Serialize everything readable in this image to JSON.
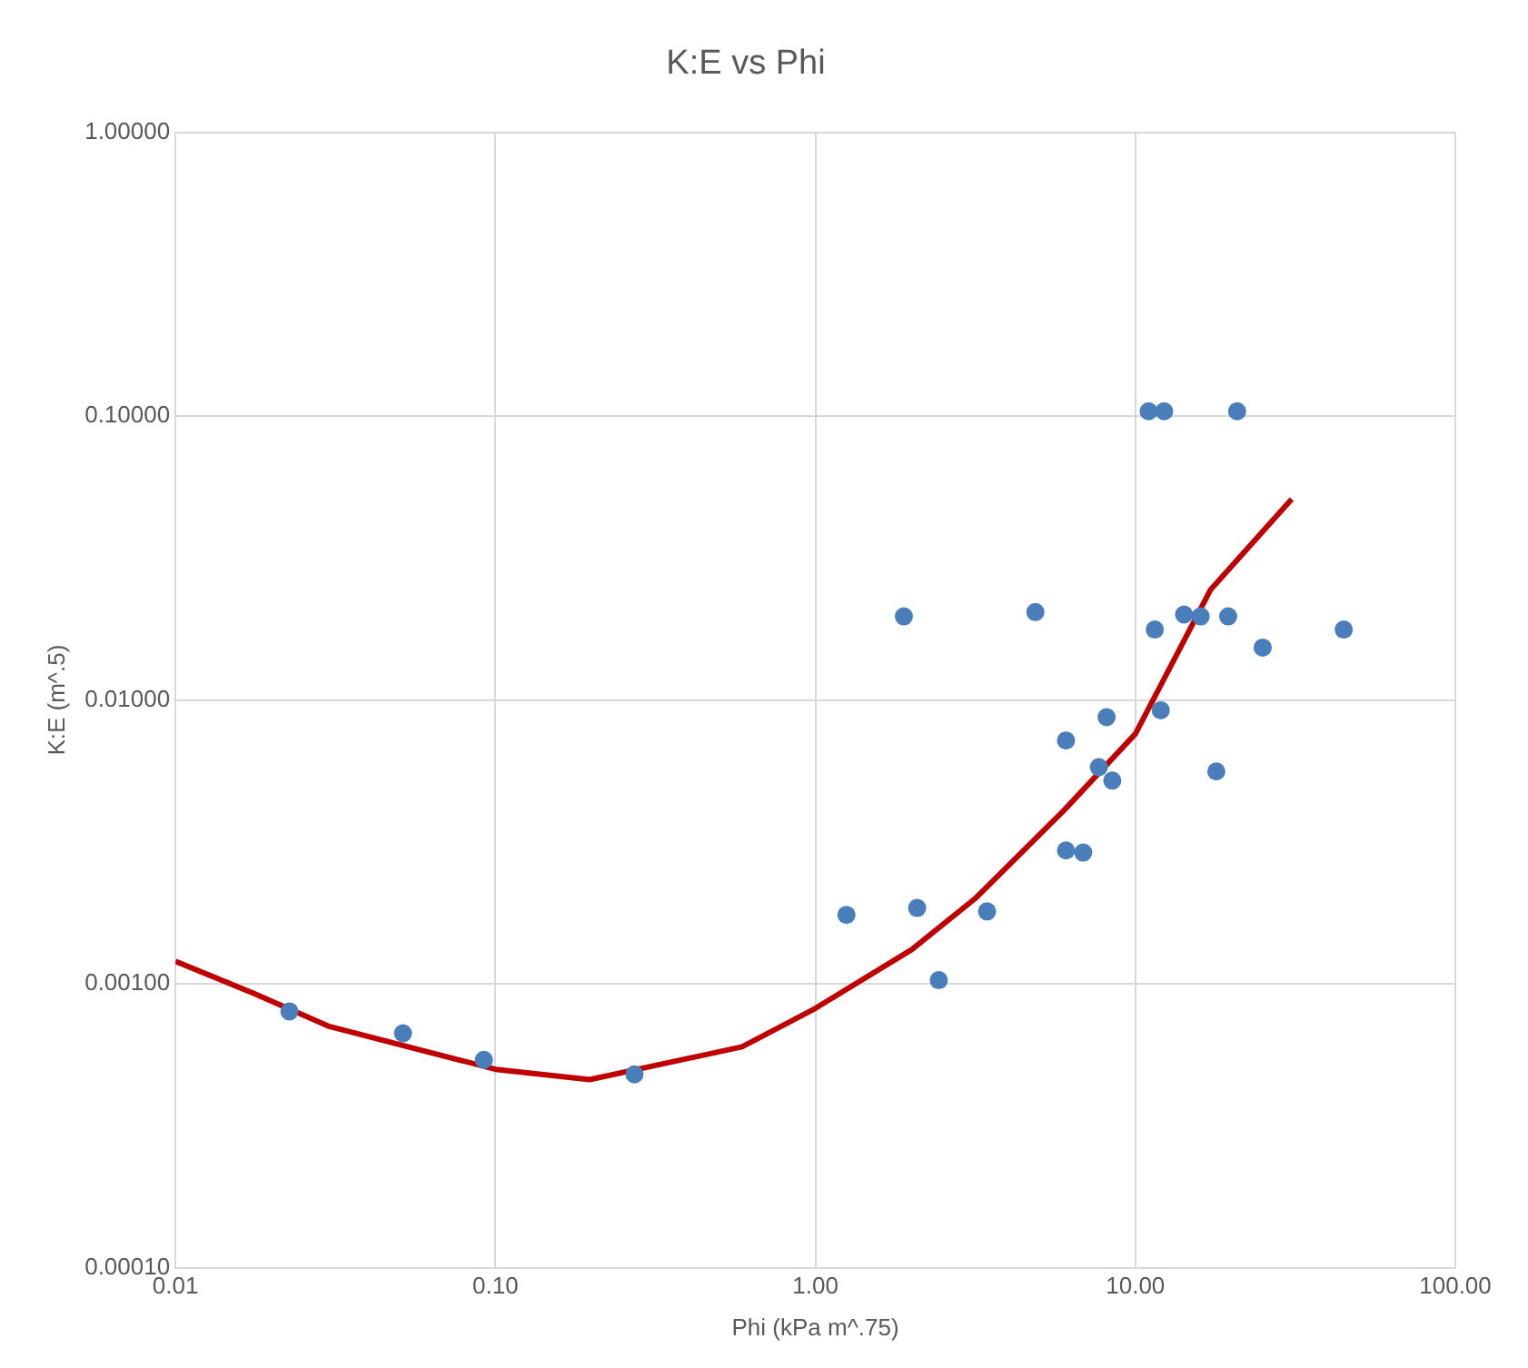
{
  "chart_data": {
    "type": "scatter",
    "title": "K:E vs Phi",
    "xlabel": "Phi (kPa m^.75)",
    "ylabel": "K:E (m^.5)",
    "log": "xy",
    "grid": true,
    "legend": false,
    "marker": "circle",
    "xlim": [
      0.01,
      100
    ],
    "ylim": [
      0.0001,
      1
    ],
    "xticks": [
      {
        "value": 0.01,
        "label": "0.01"
      },
      {
        "value": 0.1,
        "label": "0.10"
      },
      {
        "value": 1,
        "label": "1.00"
      },
      {
        "value": 10,
        "label": "10.00"
      },
      {
        "value": 100,
        "label": "100.00"
      }
    ],
    "yticks": [
      {
        "value": 0.0001,
        "label": "0.00010"
      },
      {
        "value": 0.001,
        "label": "0.00100"
      },
      {
        "value": 0.01,
        "label": "0.01000"
      },
      {
        "value": 0.1,
        "label": "0.10000"
      },
      {
        "value": 1,
        "label": "1.00000"
      }
    ],
    "series": [
      {
        "type": "scatter",
        "color": "#4a7ebb",
        "x": [
          0.0227,
          0.0514,
          0.092,
          0.272,
          1.25,
          1.89,
          2.08,
          2.43,
          3.44,
          4.87,
          6.07,
          6.07,
          6.87,
          7.69,
          8.13,
          8.47,
          11.0,
          12.3,
          11.5,
          12.0,
          14.2,
          16.0,
          17.9,
          19.5,
          20.8,
          25.0,
          44.8
        ],
        "values": [
          0.0008,
          0.00067,
          0.00054,
          0.00048,
          0.00175,
          0.0197,
          0.00185,
          0.00103,
          0.0018,
          0.0204,
          0.0072,
          0.00295,
          0.0029,
          0.0058,
          0.0087,
          0.0052,
          0.104,
          0.104,
          0.0177,
          0.0092,
          0.02,
          0.0197,
          0.0056,
          0.0197,
          0.104,
          0.0153,
          0.0177
        ]
      },
      {
        "type": "line",
        "color": "#c00000",
        "line_style": "solid",
        "marker": "none",
        "x": [
          0.01,
          0.0174,
          0.03,
          0.1,
          0.197,
          0.59,
          1.0,
          2.0,
          3.16,
          6.0,
          10,
          17.2,
          30.8
        ],
        "values": [
          0.0012,
          0.00093,
          0.00071,
          0.0005,
          0.00046,
          0.0006,
          0.00082,
          0.00132,
          0.002,
          0.0041,
          0.0076,
          0.0245,
          0.051
        ]
      }
    ]
  }
}
